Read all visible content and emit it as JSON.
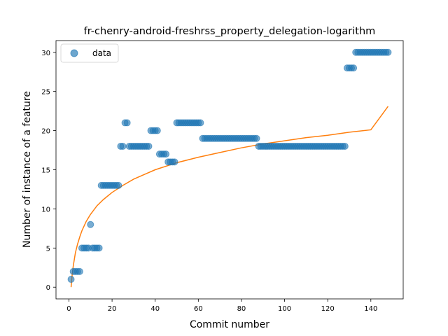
{
  "chart_data": {
    "type": "scatter",
    "title": "fr-chenry-android-freshrss_property_delegation-logarithm",
    "xlabel": "Commit number",
    "ylabel": "Number of instance of a feature",
    "xlim": [
      -6,
      155
    ],
    "ylim": [
      -1.5,
      31.5
    ],
    "xticks": [
      0,
      20,
      40,
      60,
      80,
      100,
      120,
      140
    ],
    "yticks": [
      0,
      5,
      10,
      15,
      20,
      25,
      30
    ],
    "grid": false,
    "legend_position": "top-left",
    "colors": {
      "data": "#1f77b4",
      "fit": "#ff7f0e"
    },
    "series": [
      {
        "name": "data",
        "kind": "scatter",
        "points": [
          [
            1,
            1
          ],
          [
            2,
            2
          ],
          [
            3,
            2
          ],
          [
            4,
            2
          ],
          [
            5,
            2
          ],
          [
            6,
            5
          ],
          [
            7,
            5
          ],
          [
            8,
            5
          ],
          [
            9,
            5
          ],
          [
            10,
            8
          ],
          [
            11,
            5
          ],
          [
            12,
            5
          ],
          [
            13,
            5
          ],
          [
            14,
            5
          ],
          [
            15,
            13
          ],
          [
            16,
            13
          ],
          [
            17,
            13
          ],
          [
            18,
            13
          ],
          [
            19,
            13
          ],
          [
            20,
            13
          ],
          [
            21,
            13
          ],
          [
            22,
            13
          ],
          [
            23,
            13
          ],
          [
            24,
            18
          ],
          [
            25,
            18
          ],
          [
            26,
            21
          ],
          [
            27,
            21
          ],
          [
            28,
            18
          ],
          [
            29,
            18
          ],
          [
            30,
            18
          ],
          [
            31,
            18
          ],
          [
            32,
            18
          ],
          [
            33,
            18
          ],
          [
            34,
            18
          ],
          [
            35,
            18
          ],
          [
            36,
            18
          ],
          [
            37,
            18
          ],
          [
            38,
            20
          ],
          [
            39,
            20
          ],
          [
            40,
            20
          ],
          [
            41,
            20
          ],
          [
            42,
            17
          ],
          [
            43,
            17
          ],
          [
            44,
            17
          ],
          [
            45,
            17
          ],
          [
            46,
            16
          ],
          [
            47,
            16
          ],
          [
            48,
            16
          ],
          [
            49,
            16
          ],
          [
            50,
            21
          ],
          [
            51,
            21
          ],
          [
            52,
            21
          ],
          [
            53,
            21
          ],
          [
            54,
            21
          ],
          [
            55,
            21
          ],
          [
            56,
            21
          ],
          [
            57,
            21
          ],
          [
            58,
            21
          ],
          [
            59,
            21
          ],
          [
            60,
            21
          ],
          [
            61,
            21
          ],
          [
            62,
            19
          ],
          [
            63,
            19
          ],
          [
            64,
            19
          ],
          [
            65,
            19
          ],
          [
            66,
            19
          ],
          [
            67,
            19
          ],
          [
            68,
            19
          ],
          [
            69,
            19
          ],
          [
            70,
            19
          ],
          [
            71,
            19
          ],
          [
            72,
            19
          ],
          [
            73,
            19
          ],
          [
            74,
            19
          ],
          [
            75,
            19
          ],
          [
            76,
            19
          ],
          [
            77,
            19
          ],
          [
            78,
            19
          ],
          [
            79,
            19
          ],
          [
            80,
            19
          ],
          [
            81,
            19
          ],
          [
            82,
            19
          ],
          [
            83,
            19
          ],
          [
            84,
            19
          ],
          [
            85,
            19
          ],
          [
            86,
            19
          ],
          [
            87,
            19
          ],
          [
            88,
            18
          ],
          [
            89,
            18
          ],
          [
            90,
            18
          ],
          [
            91,
            18
          ],
          [
            92,
            18
          ],
          [
            93,
            18
          ],
          [
            94,
            18
          ],
          [
            95,
            18
          ],
          [
            96,
            18
          ],
          [
            97,
            18
          ],
          [
            98,
            18
          ],
          [
            99,
            18
          ],
          [
            100,
            18
          ],
          [
            101,
            18
          ],
          [
            102,
            18
          ],
          [
            103,
            18
          ],
          [
            104,
            18
          ],
          [
            105,
            18
          ],
          [
            106,
            18
          ],
          [
            107,
            18
          ],
          [
            108,
            18
          ],
          [
            109,
            18
          ],
          [
            110,
            18
          ],
          [
            111,
            18
          ],
          [
            112,
            18
          ],
          [
            113,
            18
          ],
          [
            114,
            18
          ],
          [
            115,
            18
          ],
          [
            116,
            18
          ],
          [
            117,
            18
          ],
          [
            118,
            18
          ],
          [
            119,
            18
          ],
          [
            120,
            18
          ],
          [
            121,
            18
          ],
          [
            122,
            18
          ],
          [
            123,
            18
          ],
          [
            124,
            18
          ],
          [
            125,
            18
          ],
          [
            126,
            18
          ],
          [
            127,
            18
          ],
          [
            128,
            18
          ],
          [
            129,
            28
          ],
          [
            130,
            28
          ],
          [
            131,
            28
          ],
          [
            132,
            28
          ],
          [
            133,
            30
          ],
          [
            134,
            30
          ],
          [
            135,
            30
          ],
          [
            136,
            30
          ],
          [
            137,
            30
          ],
          [
            138,
            30
          ],
          [
            139,
            30
          ],
          [
            140,
            30
          ],
          [
            141,
            30
          ],
          [
            142,
            30
          ],
          [
            143,
            30
          ],
          [
            144,
            30
          ],
          [
            145,
            30
          ],
          [
            146,
            30
          ],
          [
            147,
            30
          ],
          [
            148,
            30
          ]
        ]
      },
      {
        "name": "",
        "kind": "line",
        "x": [
          1,
          1.5,
          2,
          3,
          4,
          5,
          6,
          8,
          10,
          13,
          16,
          20,
          25,
          30,
          35,
          40,
          50,
          60,
          70,
          80,
          90,
          100,
          110,
          120,
          130,
          140,
          148
        ],
        "y": [
          0,
          1.6,
          2.7,
          4.4,
          5.5,
          6.4,
          7.2,
          8.4,
          9.3,
          10.4,
          11.2,
          12.1,
          13.0,
          13.8,
          14.4,
          15.0,
          15.9,
          16.6,
          17.2,
          17.8,
          18.3,
          18.7,
          19.1,
          19.4,
          19.8,
          20.1,
          23.1
        ]
      }
    ],
    "legend": [
      {
        "label": "data",
        "marker": "circle"
      }
    ]
  }
}
